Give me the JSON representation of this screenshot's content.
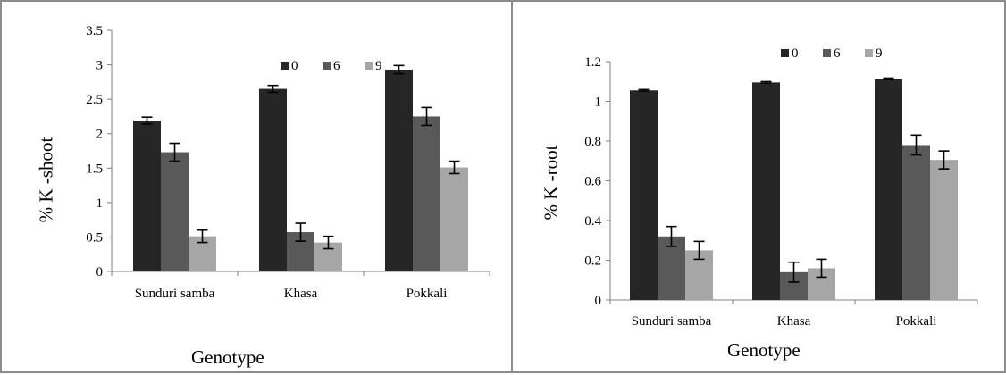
{
  "colors": {
    "0": "#262626",
    "6": "#595959",
    "9": "#a6a6a6",
    "axis": "#7f7f7f",
    "border": "#8c8c8c"
  },
  "chart_data": [
    {
      "type": "bar",
      "ylabel": "% K -shoot",
      "xlabel": "Genotype",
      "categories": [
        "Sunduri samba",
        "Khasa",
        "Pokkali"
      ],
      "series": [
        {
          "name": "0",
          "values": [
            2.19,
            2.65,
            2.93
          ],
          "errors": [
            0.05,
            0.05,
            0.06
          ]
        },
        {
          "name": "6",
          "values": [
            1.73,
            0.57,
            2.25
          ],
          "errors": [
            0.13,
            0.13,
            0.13
          ]
        },
        {
          "name": "9",
          "values": [
            0.51,
            0.42,
            1.51
          ],
          "errors": [
            0.09,
            0.09,
            0.09
          ]
        }
      ],
      "ylim": [
        0,
        3.5
      ],
      "yticks": [
        "0",
        "0.5",
        "1",
        "1.5",
        "2",
        "2.5",
        "3",
        "3.5"
      ],
      "grid": false,
      "legend": "top-right"
    },
    {
      "type": "bar",
      "ylabel": "% K -root",
      "xlabel": "Genotype",
      "categories": [
        "Sunduri samba",
        "Khasa",
        "Pokkali"
      ],
      "series": [
        {
          "name": "0",
          "values": [
            1.055,
            1.095,
            1.113
          ],
          "errors": [
            0.004,
            0.004,
            0.004
          ]
        },
        {
          "name": "6",
          "values": [
            0.32,
            0.14,
            0.78
          ],
          "errors": [
            0.05,
            0.05,
            0.05
          ]
        },
        {
          "name": "9",
          "values": [
            0.25,
            0.16,
            0.705
          ],
          "errors": [
            0.045,
            0.045,
            0.045
          ]
        }
      ],
      "ylim": [
        0,
        1.2
      ],
      "yticks": [
        "0",
        "0.2",
        "0.4",
        "0.6",
        "0.8",
        "1",
        "1.2"
      ],
      "grid": false,
      "legend": "top-right"
    }
  ]
}
